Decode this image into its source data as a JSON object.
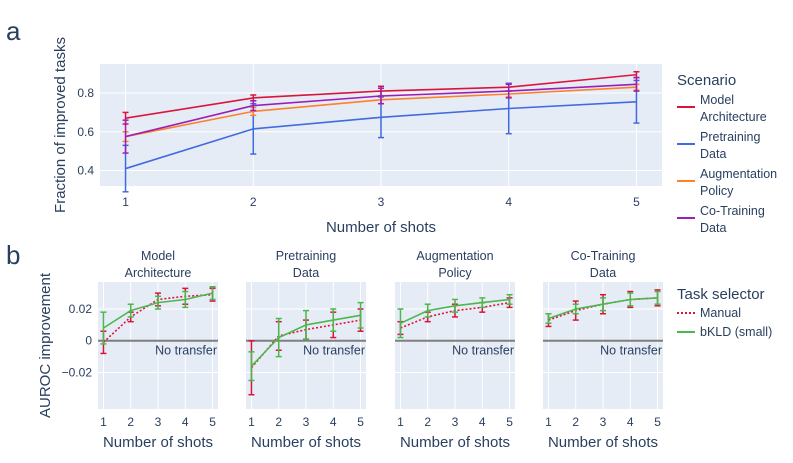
{
  "panel_a_letter": "a",
  "panel_b_letter": "b",
  "colors": {
    "Model Architecture": "#dc143c",
    "Pretraining Data": "#4169e1",
    "Augmentation Policy": "#ff7f2a",
    "Co-Training Data": "#9b1fb5",
    "manual": "#dc143c",
    "bkld": "#4cb84c",
    "plot_bg": "#e5ecf6",
    "reference_line": "#7f7f7f"
  },
  "chart_data": [
    {
      "type": "line",
      "panel": "a",
      "xlabel": "Number of shots",
      "ylabel": "Fraction of improved tasks",
      "x": [
        1,
        2,
        3,
        4,
        5
      ],
      "xlim": [
        0.8,
        5.2
      ],
      "ylim": [
        0.32,
        0.95
      ],
      "yticks": [
        0.4,
        0.6,
        0.8
      ],
      "ytick_labels": [
        "0.4",
        "0.6",
        "0.8"
      ],
      "legend_title": "Scenario",
      "legend_position": "right",
      "series": [
        {
          "name": "Model Architecture",
          "label_lines": [
            "Model",
            "Architecture"
          ],
          "values": [
            0.67,
            0.775,
            0.81,
            0.83,
            0.895
          ],
          "error": [
            0.03,
            0.015,
            0.025,
            0.02,
            0.015
          ]
        },
        {
          "name": "Pretraining Data",
          "label_lines": [
            "Pretraining",
            "Data"
          ],
          "values": [
            0.41,
            0.615,
            0.675,
            0.72,
            0.755
          ],
          "error": [
            0.12,
            0.13,
            0.105,
            0.13,
            0.11
          ]
        },
        {
          "name": "Augmentation Policy",
          "label_lines": [
            "Augmentation",
            "Policy"
          ],
          "values": [
            0.575,
            0.705,
            0.765,
            0.795,
            0.83
          ],
          "error": [
            0.025,
            0.02,
            0.02,
            0.015,
            0.015
          ]
        },
        {
          "name": "Co-Training Data",
          "label_lines": [
            "Co-Training",
            "Data"
          ],
          "values": [
            0.575,
            0.735,
            0.785,
            0.81,
            0.845
          ],
          "error": [
            0.085,
            0.025,
            0.04,
            0.035,
            0.035
          ]
        }
      ]
    },
    {
      "type": "line",
      "panel": "b",
      "xlabel": "Number of shots",
      "ylabel": "AUROC improvement",
      "x": [
        1,
        2,
        3,
        4,
        5
      ],
      "xlim": [
        0.8,
        5.2
      ],
      "ylim": [
        -0.043,
        0.037
      ],
      "yticks": [
        -0.02,
        0,
        0.02
      ],
      "ytick_labels": [
        "−0.02",
        "0",
        "0.02"
      ],
      "reference_line": {
        "y": 0,
        "label": "No transfer"
      },
      "legend_title": "Task selector",
      "legend_position": "right",
      "legend_entries": [
        "Manual",
        "bKLD (small)"
      ],
      "subplots": [
        {
          "title_lines": [
            "Model",
            "Architecture"
          ],
          "series": [
            {
              "name": "Manual",
              "values": [
                -0.001,
                0.015,
                0.026,
                0.028,
                0.029
              ],
              "error": [
                0.007,
                0.003,
                0.004,
                0.005,
                0.004
              ]
            },
            {
              "name": "bKLD (small)",
              "values": [
                0.008,
                0.019,
                0.024,
                0.026,
                0.03
              ],
              "error": [
                0.01,
                0.004,
                0.004,
                0.005,
                0.004
              ]
            }
          ]
        },
        {
          "title_lines": [
            "Pretraining",
            "Data"
          ],
          "series": [
            {
              "name": "Manual",
              "values": [
                -0.017,
                0.003,
                0.007,
                0.01,
                0.013
              ],
              "error": [
                0.017,
                0.009,
                0.006,
                0.008,
                0.007
              ]
            },
            {
              "name": "bKLD (small)",
              "values": [
                -0.016,
                0.002,
                0.01,
                0.013,
                0.016
              ],
              "error": [
                0.009,
                0.012,
                0.009,
                0.007,
                0.008
              ]
            }
          ]
        },
        {
          "title_lines": [
            "Augmentation",
            "Policy"
          ],
          "series": [
            {
              "name": "Manual",
              "values": [
                0.008,
                0.015,
                0.019,
                0.021,
                0.024
              ],
              "error": [
                0.004,
                0.003,
                0.004,
                0.003,
                0.003
              ]
            },
            {
              "name": "bKLD (small)",
              "values": [
                0.011,
                0.019,
                0.022,
                0.024,
                0.026
              ],
              "error": [
                0.009,
                0.004,
                0.004,
                0.003,
                0.003
              ]
            }
          ]
        },
        {
          "title_lines": [
            "Co-Training",
            "Data"
          ],
          "series": [
            {
              "name": "Manual",
              "values": [
                0.013,
                0.019,
                0.023,
                0.026,
                0.027
              ],
              "error": [
                0.004,
                0.006,
                0.006,
                0.005,
                0.005
              ]
            },
            {
              "name": "bKLD (small)",
              "values": [
                0.014,
                0.02,
                0.023,
                0.026,
                0.027
              ],
              "error": [
                0.003,
                0.003,
                0.004,
                0.004,
                0.004
              ]
            }
          ]
        }
      ]
    }
  ]
}
